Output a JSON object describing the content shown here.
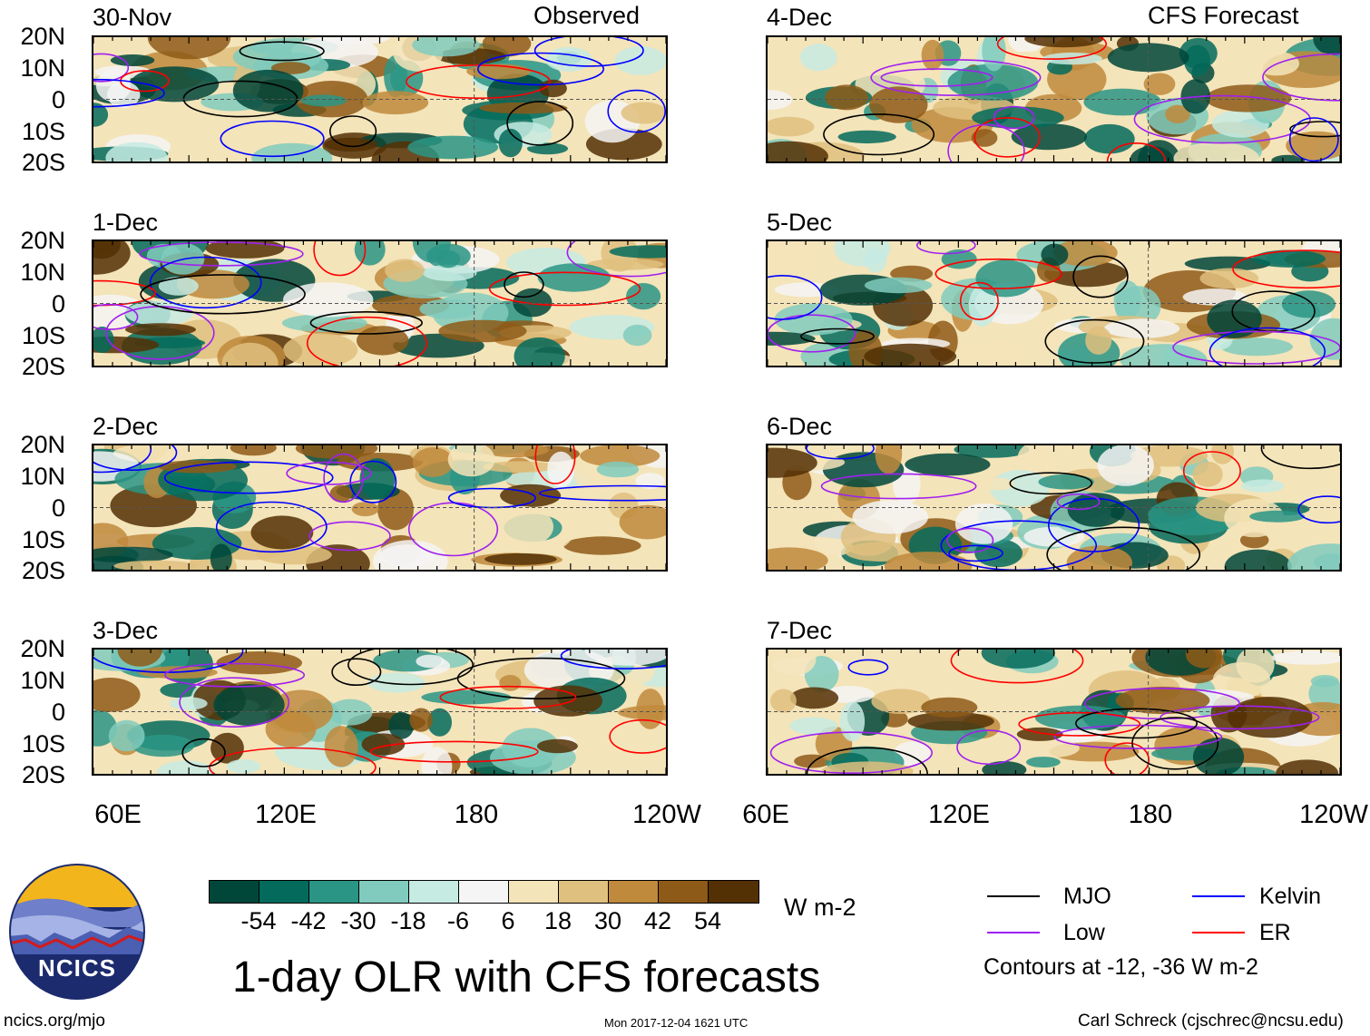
{
  "header": {
    "left_title": "Observed",
    "right_title": "CFS Forecast"
  },
  "panels_left": [
    {
      "date": "30-Nov"
    },
    {
      "date": "1-Dec"
    },
    {
      "date": "2-Dec"
    },
    {
      "date": "3-Dec"
    }
  ],
  "panels_right": [
    {
      "date": "4-Dec"
    },
    {
      "date": "5-Dec"
    },
    {
      "date": "6-Dec"
    },
    {
      "date": "7-Dec"
    }
  ],
  "lat_labels": [
    "20N",
    "10N",
    "0",
    "10S",
    "20S"
  ],
  "lon_labels": [
    "60E",
    "120E",
    "180",
    "120W"
  ],
  "colorbar": {
    "unit": "W m-2",
    "ticks": [
      "-54",
      "-42",
      "-30",
      "-18",
      "-6",
      "6",
      "18",
      "30",
      "42",
      "54"
    ],
    "colors": [
      "#00473a",
      "#046b5c",
      "#2a9585",
      "#80cbbd",
      "#c5ebe3",
      "#f5f5f5",
      "#f4e4b9",
      "#dfc07e",
      "#bf8a3c",
      "#8e5a17",
      "#543005"
    ]
  },
  "legend": {
    "items": [
      {
        "label": "MJO",
        "color": "#000000"
      },
      {
        "label": "Kelvin",
        "color": "#0000ff"
      },
      {
        "label": "Low",
        "color": "#a020f0"
      },
      {
        "label": "ER",
        "color": "#ff0000"
      }
    ],
    "note": "Contours at -12, -36 W m-2"
  },
  "title": "1-day OLR with CFS forecasts",
  "logo_text": "NCICS",
  "footer": {
    "url": "ncics.org/mjo",
    "timestamp": "Mon 2017-12-04 1621 UTC",
    "credit": "Carl Schreck (cjschrec@ncsu.edu)"
  }
}
